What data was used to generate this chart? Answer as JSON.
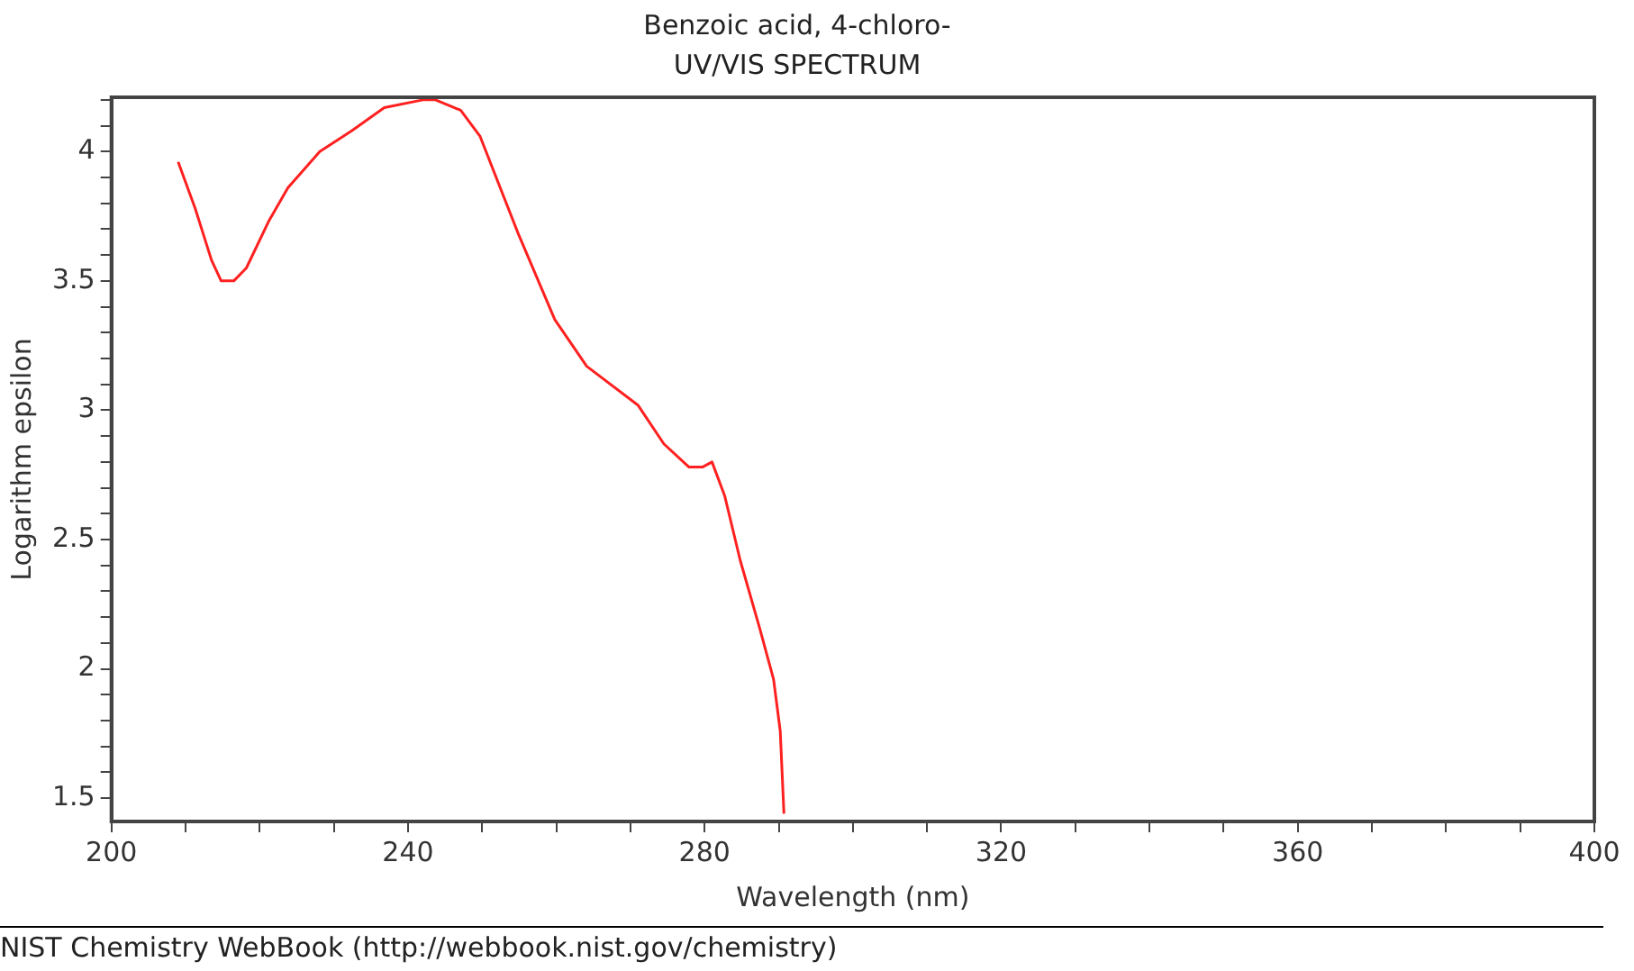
{
  "chart_data": {
    "type": "line",
    "title": "Benzoic acid, 4-chloro-",
    "subtitle": "UV/VIS SPECTRUM",
    "xlabel": "Wavelength (nm)",
    "ylabel": "Logarithm epsilon",
    "annotations": [
      "NIST Chemistry WebBook (http://webbook.nist.gov/chemistry)"
    ],
    "xlim": [
      200,
      400
    ],
    "ylim": [
      1.41,
      4.21
    ],
    "xticks": [
      200,
      {
        "value": 210,
        "label": null
      },
      {
        "value": 220,
        "label": null
      },
      {
        "value": 230,
        "label": null
      },
      240,
      {
        "value": 250,
        "label": null
      },
      {
        "value": 260,
        "label": null
      },
      {
        "value": 270,
        "label": null
      },
      280,
      {
        "value": 290,
        "label": null
      },
      {
        "value": 300,
        "label": null
      },
      {
        "value": 310,
        "label": null
      },
      320,
      {
        "value": 330,
        "label": null
      },
      {
        "value": 340,
        "label": null
      },
      {
        "value": 350,
        "label": null
      },
      360,
      {
        "value": 370,
        "label": null
      },
      {
        "value": 380,
        "label": null
      },
      {
        "value": 390,
        "label": null
      },
      400
    ],
    "yticks": [
      1.5,
      {
        "value": 1.6,
        "label": null
      },
      {
        "value": 1.7,
        "label": null
      },
      {
        "value": 1.8,
        "label": null
      },
      {
        "value": 1.9,
        "label": null
      },
      2,
      {
        "value": 2.1,
        "label": null
      },
      {
        "value": 2.2,
        "label": null
      },
      {
        "value": 2.3,
        "label": null
      },
      {
        "value": 2.4,
        "label": null
      },
      2.5,
      {
        "value": 2.6,
        "label": null
      },
      {
        "value": 2.7,
        "label": null
      },
      {
        "value": 2.8,
        "label": null
      },
      {
        "value": 2.9,
        "label": null
      },
      3,
      {
        "value": 3.1,
        "label": null
      },
      {
        "value": 3.2,
        "label": null
      },
      {
        "value": 3.3,
        "label": null
      },
      {
        "value": 3.4,
        "label": null
      },
      3.5,
      {
        "value": 3.6,
        "label": null
      },
      {
        "value": 3.7,
        "label": null
      },
      {
        "value": 3.8,
        "label": null
      },
      {
        "value": 3.9,
        "label": null
      },
      4,
      {
        "value": 4.1,
        "label": null
      },
      {
        "value": 4.2,
        "label": null
      }
    ],
    "grid": false,
    "legend": false,
    "marker": "none",
    "line_style": "solid",
    "series": [
      {
        "color": "#ff2020",
        "x": [
          209,
          211.3,
          213.5,
          214.8,
          216.5,
          218.2,
          221.2,
          223.8,
          228.1,
          232.4,
          236.8,
          242,
          243.7,
          247.1,
          249.7,
          254.9,
          259.8,
          264.1,
          271,
          274.5,
          277.9,
          279.7,
          281,
          282.7,
          284.8,
          287.4,
          289.3,
          290.2,
          290.7
        ],
        "values": [
          3.96,
          3.78,
          3.58,
          3.5,
          3.5,
          3.55,
          3.73,
          3.86,
          4.0,
          4.08,
          4.17,
          4.2,
          4.2,
          4.16,
          4.06,
          3.68,
          3.35,
          3.17,
          3.02,
          2.87,
          2.78,
          2.78,
          2.8,
          2.67,
          2.42,
          2.16,
          1.96,
          1.76,
          1.44
        ]
      }
    ]
  }
}
